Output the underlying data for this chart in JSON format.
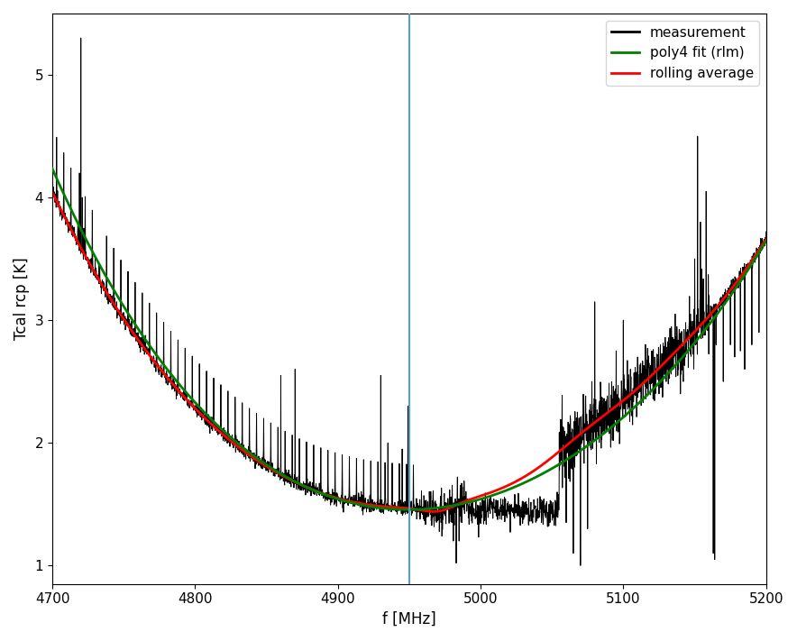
{
  "title": "",
  "xlabel": "f [MHz]",
  "ylabel": "Tcal rcp [K]",
  "xlim": [
    4700,
    5200
  ],
  "ylim": [
    0.85,
    5.5
  ],
  "vline_x": 4950,
  "vline_color": "#5b9bd5",
  "measurement_color": "black",
  "poly4_color": "green",
  "rolling_color": "red",
  "legend_labels": [
    "measurement",
    "poly4 fit (rlm)",
    "rolling average"
  ],
  "freq_start": 4700,
  "freq_end": 5200,
  "noise_seed": 12345
}
